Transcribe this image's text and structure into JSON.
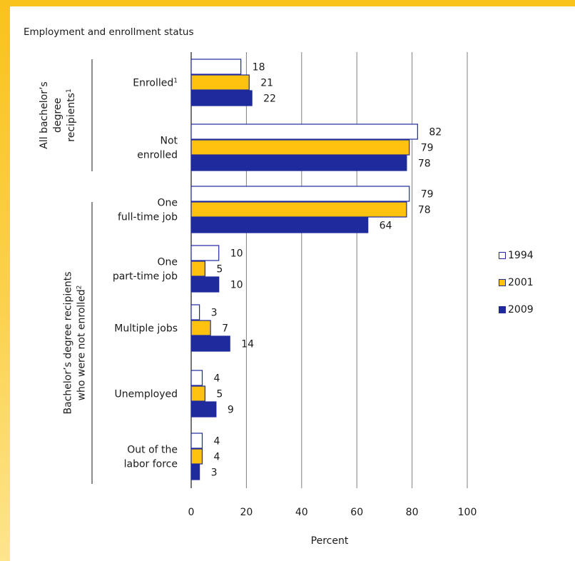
{
  "chart_data": {
    "type": "bar",
    "orientation": "horizontal",
    "title": "Employment and enrollment status",
    "xlabel": "Percent",
    "xlim": [
      0,
      100
    ],
    "xticks": [
      0,
      20,
      40,
      60,
      80,
      100
    ],
    "grid": true,
    "legend_position": "right",
    "groups": [
      {
        "label_lines": [
          "All bachelor’s",
          "degree",
          "recipients"
        ],
        "label_sup": "1",
        "categories": [
          {
            "lines": [
              "Enrolled"
            ],
            "sup": "1"
          },
          {
            "lines": [
              "Not",
              "enrolled"
            ],
            "sup": ""
          }
        ]
      },
      {
        "label_lines": [
          "Bachelor’s degree recipients",
          "who were not enrolled"
        ],
        "label_sup": "2",
        "categories": [
          {
            "lines": [
              "One",
              "full-time job"
            ],
            "sup": ""
          },
          {
            "lines": [
              "One",
              "part-time job"
            ],
            "sup": ""
          },
          {
            "lines": [
              "Multiple jobs"
            ],
            "sup": ""
          },
          {
            "lines": [
              "Unemployed"
            ],
            "sup": ""
          },
          {
            "lines": [
              "Out of the",
              "labor force"
            ],
            "sup": ""
          }
        ]
      }
    ],
    "series": [
      {
        "name": "1994",
        "color": "#ffffff",
        "values": [
          18,
          82,
          79,
          10,
          3,
          4,
          4
        ]
      },
      {
        "name": "2001",
        "color": "#ffc20e",
        "values": [
          21,
          79,
          78,
          5,
          7,
          5,
          4
        ]
      },
      {
        "name": "2009",
        "color": "#1f2a9c",
        "values": [
          22,
          78,
          64,
          10,
          14,
          9,
          3
        ]
      }
    ]
  },
  "colors": {
    "bar_outline": "#1f2a9c",
    "gridline": "#7f7f7f",
    "frame": "#f8c31b"
  }
}
